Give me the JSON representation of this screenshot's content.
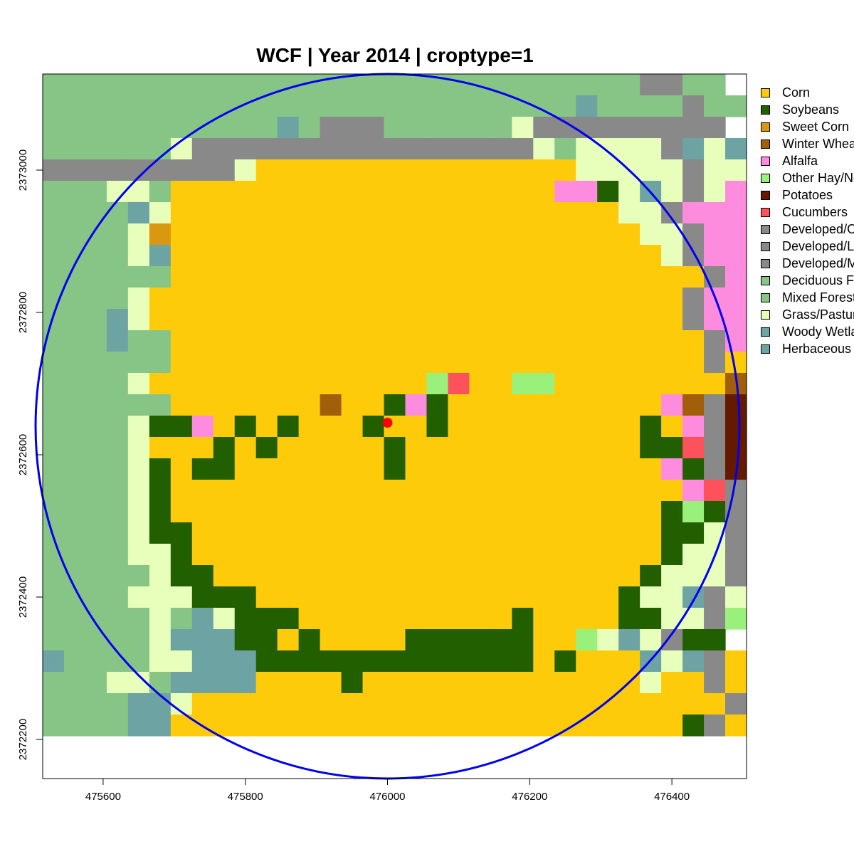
{
  "chart_data": {
    "type": "heatmap",
    "title": "WCF | Year 2014 | croptype=1",
    "xlabel": "",
    "ylabel": "",
    "xlim": [
      475515,
      476505
    ],
    "ylim": [
      2372145,
      2373135
    ],
    "x_ticks": [
      475600,
      475800,
      476000,
      476200,
      476400
    ],
    "y_ticks": [
      2372200,
      2372400,
      2372600,
      2372800,
      2373000
    ],
    "x_tick_labels": [
      "475600",
      "475800",
      "476000",
      "476200",
      "476400"
    ],
    "y_tick_labels": [
      "2372200",
      "2372400",
      "2372600",
      "2372800",
      "2373000"
    ],
    "cell_size": 30,
    "grid": false,
    "legend_position": "right",
    "legend": [
      {
        "key": "C",
        "label": "Corn",
        "color": "#FECB0A"
      },
      {
        "key": "S",
        "label": "Soybeans",
        "color": "#225F00"
      },
      {
        "key": "W",
        "label": "Sweet Corn",
        "color": "#DA9810"
      },
      {
        "key": "H",
        "label": "Winter Wheat",
        "color": "#A15F0A"
      },
      {
        "key": "A",
        "label": "Alfalfa",
        "color": "#FD8CDE"
      },
      {
        "key": "O",
        "label": "Other Hay/Non Alfalfa",
        "color": "#99F17C"
      },
      {
        "key": "P",
        "label": "Potatoes",
        "color": "#651A00"
      },
      {
        "key": "U",
        "label": "Cucumbers",
        "color": "#FD515C"
      },
      {
        "key": "D",
        "label": "Developed/Open Space",
        "color": "#898989"
      },
      {
        "key": "D2",
        "label": "Developed/Low Intensity",
        "color": "#898989"
      },
      {
        "key": "D3",
        "label": "Developed/Med Intensity",
        "color": "#898989"
      },
      {
        "key": "F",
        "label": "Deciduous Forest",
        "color": "#86C586"
      },
      {
        "key": "M",
        "label": "Mixed Forest",
        "color": "#86C586"
      },
      {
        "key": "G",
        "label": "Grass/Pasture",
        "color": "#E8FEBB"
      },
      {
        "key": "V",
        "label": "Woody Wetlands",
        "color": "#6DA3A3"
      },
      {
        "key": "E",
        "label": "Herbaceous Wetlands",
        "color": "#6DA3A3"
      }
    ],
    "grid_rows": [
      "FFFFFFFFFFFFFFFFFFFFFFFFFFFFDDFF",
      "FFFFFFFFFFFFFFFFFFFFFFFFFVFFFFDFFF",
      "FFFFFFFFFFFVFDDDFFFFFFGDDDDDDDDD",
      "FFFFFFGDDDDDDDDDDDDDDDDGFGGGGDVGV",
      "DDDDDDDDDGCCCCCCCCCCCCCCCGGGGGDGGG",
      "FFFGGFCCCCCCCCCCCCCCCCCCAASGVGDGAA",
      "FFFFVGCCCCCCCCCCCCCCCCCCCCCGGDAAA",
      "FFFFGWCCCCCCCCCCCCCCCCCCCCCCGGDAAA",
      "FFFFGVCCCCCCCCCCCCCCCCCCCCCCCGDAAAA",
      "FFFFFFCCCCCCCCCCCCCCCCCCCCCCCCCDAAA",
      "FFFFGCCCCCCCCCCCCCCCCCCCCCCCCCDAAA",
      "FFFVGCCCCCCCCCCCCCCCCCCCCCCCCCDAAA",
      "FFFVFFCCCCCCCCCCCCCCCCCCCCCCCCCDAA",
      "FFFFFFCCCCCCCCCCCCCCCCCCCCCCCCCDCS",
      "FFFFGCCCCCCCCCCCCCOUCCOOCCCCCCCCHDPP",
      "FFFFFFCCCCCCCHCCSASCCCCCCCCCCAHDPP",
      "FFFFGSSACSCSCCCSCCSCCCCCCCCCSCADPP",
      "FFFFGCCCSCSCCCCCSCCCCCCCCCCCSSUDPP",
      "FFFFGSCSSCCCCCCCSCCCCCCCCCCCCASDPP",
      "FFFFGSCCCCCCCCCCCCCCCCCCCCCCCCAUDPP",
      "FFFFGSCCCCCCCCCCCCCCCCCCCCCCCSOSDCP",
      "FFFFGSSCCCCCCCCCCCCCCCCCCCCCCSSGDGC",
      "FFFFGGSCCCCCCCCCCCCCCCCCCCCCCSGGDAC",
      "FFFFFGSSCCCCCCCCCCCCCCCCCCCCSGGGDGA",
      "FFFFGGGSSSCCCCCCCCCCCCCCCCCSGGVDGG",
      "FFFFFGFVGSSSCCCCCCCCCCSCCCCSSGGDOG",
      "FFFFFGVVVSSCSCCCCSSSSSSCCOGVGDSS",
      "VFFFFGGVVVSSSSSSSSSSSSSCSCCCVGVDC",
      "FFFGGFVVVVCCCCSCCCCCCCCCCCCCGCCDC",
      "FFFFVVGCCCCCCCCCCCCCCCCCCCCCCCCCDC",
      "FFFFVVCCCCCCCCCCCCCCCCCCCCCCCCSDC"
    ],
    "circle": {
      "center": [
        476000,
        2372640
      ],
      "radius": 495,
      "color": "#0000EE"
    },
    "point": {
      "x": 476000,
      "y": 2372645,
      "color": "#FF0000"
    }
  }
}
